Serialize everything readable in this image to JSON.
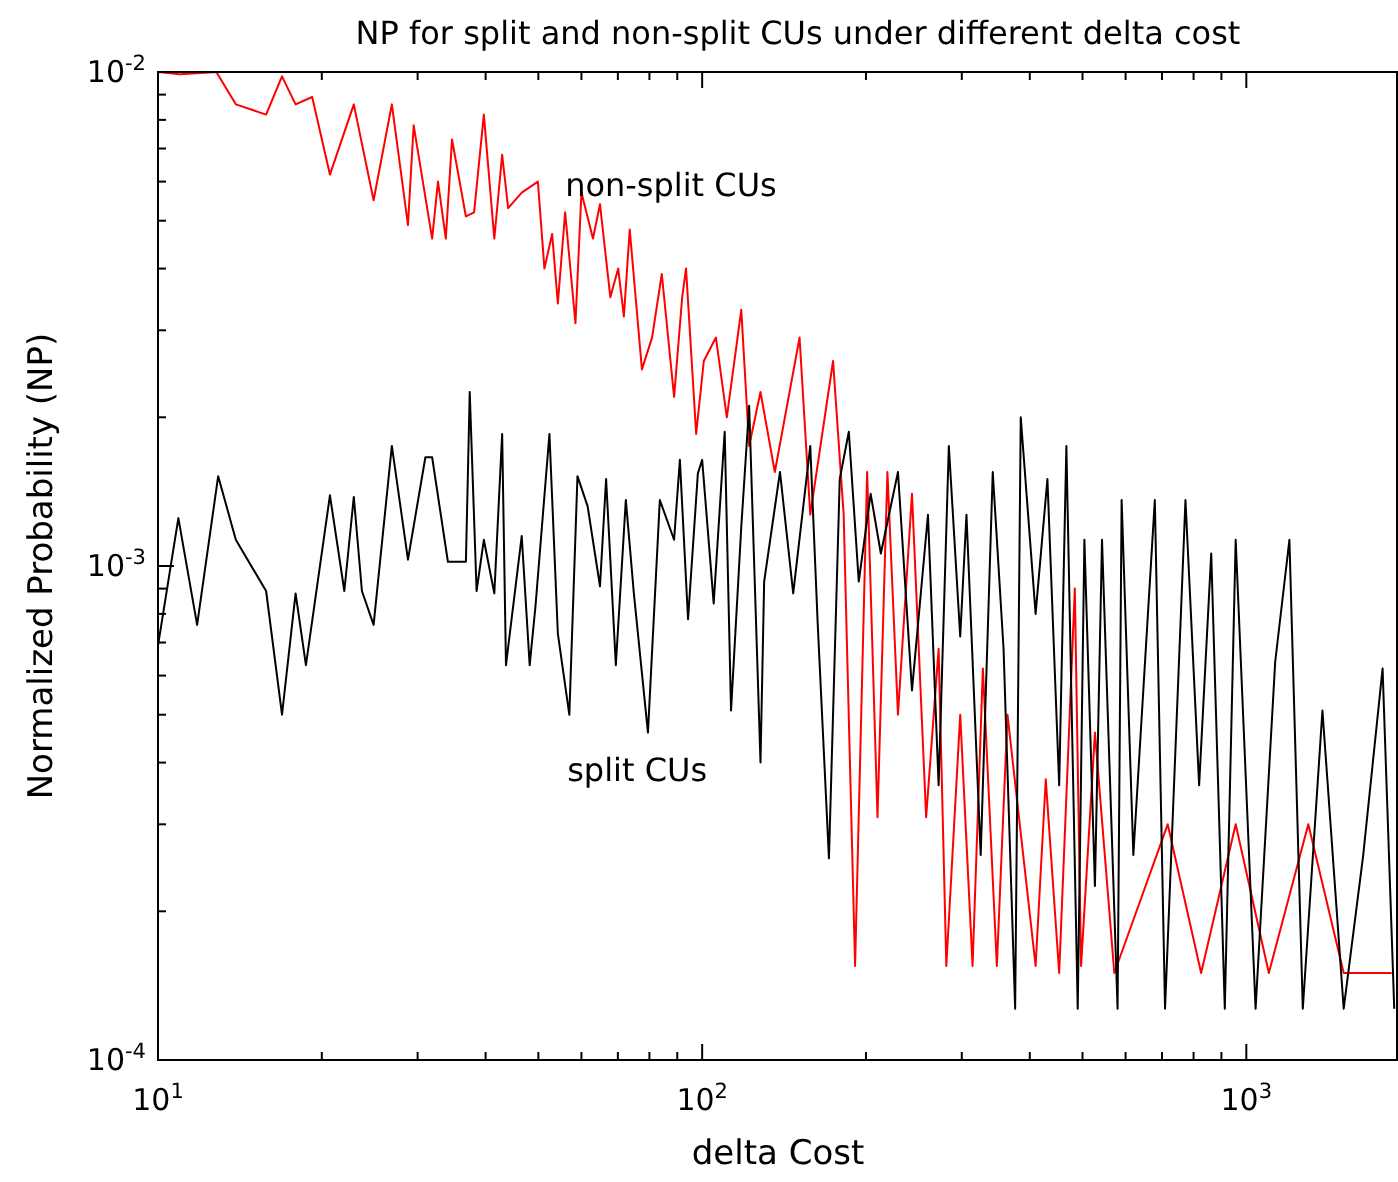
{
  "chart_data": {
    "type": "line",
    "title": "NP for split and non-split CUs under different delta cost",
    "xlabel": "delta Cost",
    "ylabel": "Normalized Probability (NP)",
    "log": "xy",
    "grid": false,
    "line_style": "solid",
    "xlim": [
      10,
      1900
    ],
    "ylim": [
      0.0001,
      0.01
    ],
    "xticks": [
      {
        "value": 10,
        "label": "10$^{1}$"
      },
      {
        "value": 100,
        "label": "10$^{2}$"
      },
      {
        "value": 1000,
        "label": "10$^{3}$"
      }
    ],
    "yticks": [
      {
        "value": 0.0001,
        "label": "10$^{-4}$"
      },
      {
        "value": 0.001,
        "label": "10$^{-3}$"
      },
      {
        "value": 0.01,
        "label": "10$^{-2}$"
      }
    ],
    "series": [
      {
        "name": "non-split CUs",
        "color": "#ff0000",
        "x": [
          10,
          10.98,
          12.8,
          13.9,
          15.8,
          16.9,
          17.9,
          19.2,
          20.7,
          22.9,
          24.9,
          26.9,
          28.8,
          29.5,
          31.9,
          32.7,
          33.8,
          34.7,
          36.8,
          38.1,
          39.7,
          41.5,
          42.9,
          44,
          46.6,
          49.9,
          51.3,
          53,
          54.3,
          56,
          58.5,
          60,
          63,
          64.9,
          67.8,
          70.1,
          71.8,
          73.6,
          77.5,
          80.9,
          84.3,
          88.8,
          91.9,
          93.4,
          97.5,
          100.7,
          106,
          111,
          118,
          122,
          128,
          136,
          151,
          158,
          174,
          182,
          191,
          201,
          210,
          219,
          229,
          243,
          258,
          272,
          281,
          298,
          314,
          328,
          348,
          364,
          410,
          428,
          453,
          484,
          497,
          527,
          572,
          717,
          826,
          956,
          1100,
          1300,
          1510,
          1850
        ],
        "values": [
          0.01,
          0.0099,
          0.01,
          0.0086,
          0.0082,
          0.0098,
          0.0086,
          0.0089,
          0.0062,
          0.0086,
          0.0055,
          0.0086,
          0.0049,
          0.0078,
          0.0046,
          0.006,
          0.0046,
          0.0073,
          0.0051,
          0.0052,
          0.0082,
          0.0046,
          0.0068,
          0.0053,
          0.0057,
          0.006,
          0.004,
          0.0047,
          0.0034,
          0.0052,
          0.0031,
          0.0057,
          0.0046,
          0.0054,
          0.0035,
          0.004,
          0.0032,
          0.0048,
          0.0025,
          0.0029,
          0.0039,
          0.0022,
          0.0035,
          0.004,
          0.00185,
          0.0026,
          0.0029,
          0.002,
          0.0033,
          0.00175,
          0.00225,
          0.00155,
          0.0029,
          0.00127,
          0.0026,
          0.00127,
          0.000155,
          0.00155,
          0.00031,
          0.00155,
          0.0005,
          0.0014,
          0.00031,
          0.00068,
          0.000155,
          0.0005,
          0.000155,
          0.00062,
          0.000155,
          0.0005,
          0.000155,
          0.00037,
          0.00015,
          0.0009,
          0.000155,
          0.00046,
          0.00015,
          0.0003,
          0.00015,
          0.0003,
          0.00015,
          0.0003,
          0.00015,
          0.00015
        ]
      },
      {
        "name": "split CUs",
        "color": "#000000",
        "x": [
          10,
          10.9,
          11.8,
          12.9,
          13.9,
          15.8,
          16.9,
          17.9,
          18.7,
          20.7,
          22,
          22.9,
          23.7,
          24.9,
          26.9,
          28.8,
          31,
          31.9,
          34.1,
          36.8,
          37.4,
          38.5,
          39.7,
          41.5,
          42.9,
          43.6,
          46.6,
          48.2,
          49.4,
          52.4,
          54.3,
          57,
          59,
          61.6,
          64.9,
          66.6,
          69.4,
          72.4,
          74.9,
          79.5,
          83.6,
          88.8,
          91,
          94.2,
          98.2,
          100,
          105,
          110,
          113,
          118,
          122,
          128,
          130,
          139,
          147,
          158,
          163,
          171,
          179,
          186,
          194,
          204,
          213,
          229,
          243,
          260,
          272,
          284,
          298,
          306,
          325,
          342,
          358,
          376,
          385,
          410,
          431,
          453,
          467,
          490,
          504,
          527,
          543,
          580,
          590,
          620,
          679,
          709,
          773,
          819,
          862,
          913,
          956,
          1040,
          1130,
          1200,
          1270,
          1380,
          1510,
          1640,
          1780,
          1870
        ],
        "values": [
          0.00069,
          0.00125,
          0.00076,
          0.00152,
          0.00113,
          0.00089,
          0.0005,
          0.00088,
          0.00063,
          0.00139,
          0.00089,
          0.00138,
          0.00089,
          0.00076,
          0.00175,
          0.00103,
          0.00166,
          0.00166,
          0.00102,
          0.00102,
          0.00225,
          0.00089,
          0.00113,
          0.00088,
          0.00185,
          0.00063,
          0.00115,
          0.00063,
          0.00083,
          0.00185,
          0.00073,
          0.0005,
          0.00152,
          0.00132,
          0.00091,
          0.0015,
          0.00063,
          0.00136,
          0.00088,
          0.00046,
          0.00136,
          0.00113,
          0.00164,
          0.00078,
          0.00154,
          0.00164,
          0.00084,
          0.00187,
          0.00051,
          0.0012,
          0.00211,
          0.0004,
          0.00093,
          0.00155,
          0.00088,
          0.00175,
          0.00077,
          0.000256,
          0.0015,
          0.00187,
          0.00093,
          0.0014,
          0.00106,
          0.00155,
          0.00056,
          0.00127,
          0.00036,
          0.00175,
          0.00072,
          0.00127,
          0.00026,
          0.00155,
          0.00068,
          0.000127,
          0.002,
          0.0008,
          0.0015,
          0.00036,
          0.00175,
          0.000127,
          0.00113,
          0.000225,
          0.00113,
          0.000127,
          0.00136,
          0.00026,
          0.00136,
          0.000127,
          0.00136,
          0.00036,
          0.00106,
          0.000127,
          0.00113,
          0.000127,
          0.00064,
          0.00113,
          0.000127,
          0.00051,
          0.000127,
          0.00026,
          0.00062,
          0.000127
        ]
      }
    ]
  }
}
